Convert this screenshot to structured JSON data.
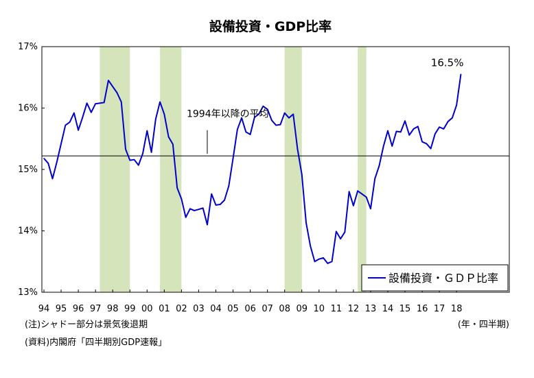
{
  "chart_data": {
    "type": "line",
    "title": "設備投資・GDP比率",
    "xlabel": "",
    "ylabel": "",
    "ylim": [
      13,
      17
    ],
    "yticks": [
      "13%",
      "14%",
      "15%",
      "16%",
      "17%"
    ],
    "xticks": [
      "94",
      "95",
      "96",
      "97",
      "98",
      "99",
      "00",
      "01",
      "02",
      "03",
      "04",
      "05",
      "06",
      "07",
      "08",
      "09",
      "10",
      "11",
      "12",
      "13",
      "14",
      "15",
      "16",
      "17",
      "18"
    ],
    "x_unit": "(年・四半期)",
    "legend": {
      "position": "bottom-right",
      "label": "設備投資・ＧＤＰ比率"
    },
    "series": [
      {
        "name": "設備投資・ＧＤＰ比率",
        "color": "#0000cc",
        "start": "1994Q1",
        "values": [
          15.18,
          15.1,
          14.85,
          15.12,
          15.42,
          15.72,
          15.77,
          15.92,
          15.64,
          15.85,
          16.08,
          15.93,
          16.07,
          16.08,
          16.09,
          16.45,
          16.35,
          16.25,
          16.1,
          15.33,
          15.15,
          15.16,
          15.07,
          15.26,
          15.63,
          15.28,
          15.82,
          16.1,
          15.9,
          15.53,
          15.41,
          14.7,
          14.52,
          14.22,
          14.36,
          14.33,
          14.35,
          14.37,
          14.1,
          14.6,
          14.42,
          14.43,
          14.5,
          14.73,
          15.18,
          15.65,
          15.84,
          15.61,
          15.57,
          15.85,
          15.9,
          16.03,
          15.98,
          15.8,
          15.72,
          15.73,
          15.92,
          15.84,
          15.9,
          15.33,
          14.92,
          14.13,
          13.75,
          13.5,
          13.54,
          13.56,
          13.47,
          13.5,
          13.99,
          13.87,
          13.98,
          14.64,
          14.41,
          14.65,
          14.6,
          14.55,
          14.36,
          14.85,
          15.06,
          15.38,
          15.63,
          15.38,
          15.62,
          15.61,
          15.79,
          15.56,
          15.66,
          15.7,
          15.45,
          15.42,
          15.34,
          15.58,
          15.69,
          15.66,
          15.78,
          15.84,
          16.05,
          16.55
        ]
      }
    ],
    "reference_line": {
      "label": "1994年以降の平均",
      "value": 15.22
    },
    "shaded_periods": [
      {
        "start": "1997Q2",
        "end": "1999Q1"
      },
      {
        "start": "2000Q4",
        "end": "2002Q1"
      },
      {
        "start": "2008Q1",
        "end": "2009Q1"
      },
      {
        "start": "2012Q2",
        "end": "2012Q4"
      }
    ],
    "annotations": [
      {
        "text": "16.5%"
      },
      {
        "text": "1994年以降の平均"
      }
    ],
    "colors": {
      "shade": "#d6e4bc",
      "line": "#0000cc",
      "average": "#000000"
    }
  },
  "notes": {
    "shade_note": "(注)シャドー部分は景気後退期",
    "source": "(資料)内閣府「四半期別GDP速報」"
  }
}
